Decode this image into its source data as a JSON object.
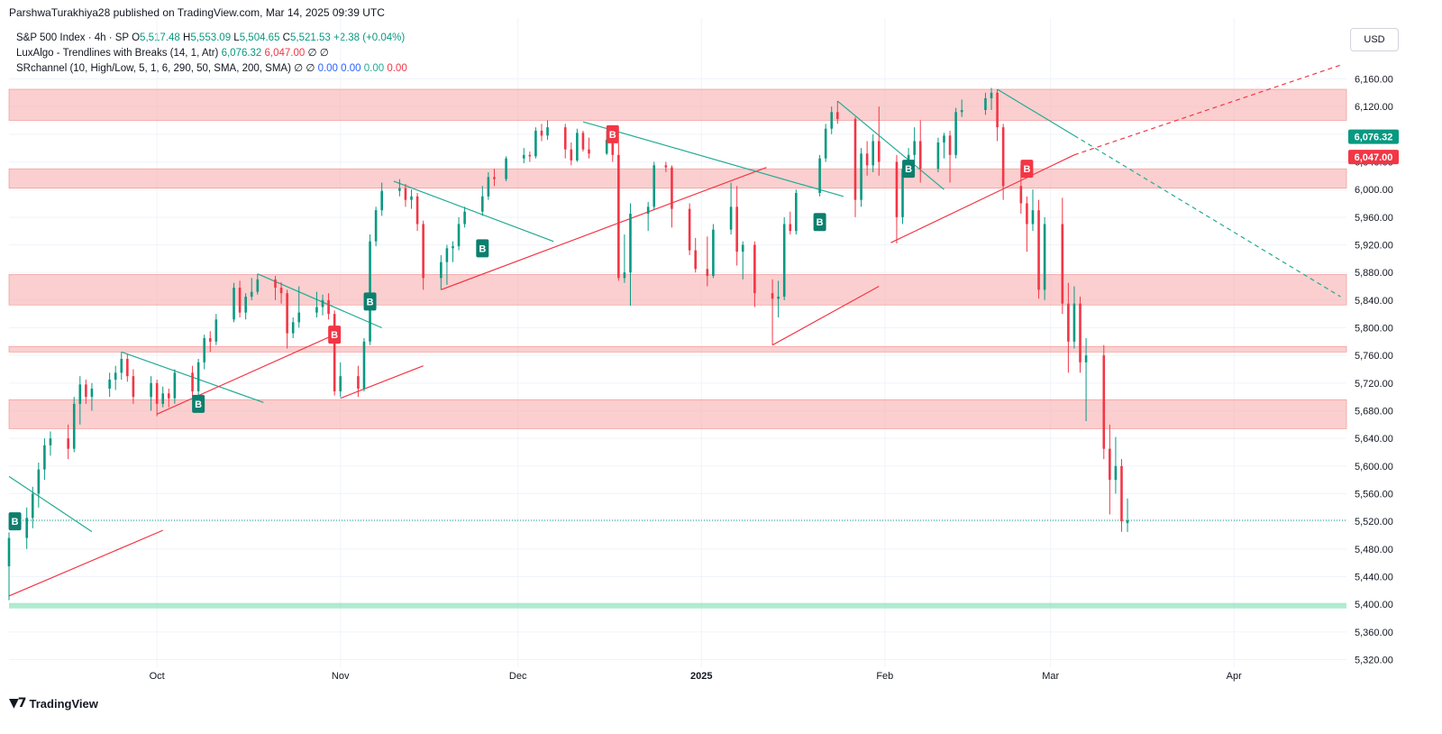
{
  "publisher_line": "ParshwaTurakhiya28 published on TradingView.com, Mar 14, 2025 09:39 UTC",
  "legend": {
    "symbol": "S&P 500 Index · 4h · SP",
    "o_label": "O",
    "o_val": "5,517.48",
    "h_label": "H",
    "h_val": "5,553.09",
    "l_label": "L",
    "l_val": "5,504.65",
    "c_label": "C",
    "c_val": "5,521.53",
    "change": "+2.38 (+0.04%)",
    "lux_name": "LuxAlgo - Trendlines with Breaks (14, 1, Atr)",
    "lux_v1": "6,076.32",
    "lux_v2": "6,047.00",
    "lux_v3": "∅  ∅",
    "sr_name": "SRchannel (10, High/Low, 5, 1, 6, 290, 50, SMA, 200, SMA)",
    "sr_v0": "∅  ∅",
    "sr_v1": "0.00",
    "sr_v2": "0.00",
    "sr_v3": "0.00",
    "sr_v4": "0.00"
  },
  "currency_button": "USD",
  "footer": {
    "brand": "TradingView",
    "logo_icon": "tradingview-logo-icon"
  },
  "colors": {
    "up": "#089981",
    "down": "#f23645",
    "zone": "#f7a8a8",
    "support_zone": "#7fe0b0",
    "trend_up": "#f23645",
    "trend_down": "#22ab94"
  },
  "chart_data": {
    "type": "candlestick",
    "title": "S&P 500 Index · 4h · SP",
    "y_axis": {
      "ticks": [
        5320,
        5360,
        5400,
        5440,
        5480,
        5520,
        5560,
        5600,
        5640,
        5680,
        5720,
        5760,
        5800,
        5840,
        5880,
        5920,
        5960,
        6000,
        6040,
        6080,
        6120,
        6160
      ],
      "tick_labels": [
        "5,320.00",
        "5,360.00",
        "5,400.00",
        "5,440.00",
        "5,480.00",
        "5,520.00",
        "5,560.00",
        "5,600.00",
        "5,640.00",
        "5,680.00",
        "5,720.00",
        "5,760.00",
        "5,800.00",
        "5,840.00",
        "5,880.00",
        "5,920.00",
        "5,960.00",
        "6,000.00",
        "6,040.00",
        "6,080.00",
        "6,120.00",
        "6,160.00"
      ],
      "range": [
        5300,
        6200
      ]
    },
    "x_axis": {
      "labels": [
        {
          "date": "2024-10-01",
          "label": "Oct",
          "bold": false
        },
        {
          "date": "2024-11-01",
          "label": "Nov",
          "bold": false
        },
        {
          "date": "2024-12-01",
          "label": "Dec",
          "bold": false
        },
        {
          "date": "2025-01-01",
          "label": "2025",
          "bold": true
        },
        {
          "date": "2025-02-01",
          "label": "Feb",
          "bold": false
        },
        {
          "date": "2025-03-01",
          "label": "Mar",
          "bold": false
        },
        {
          "date": "2025-04-01",
          "label": "Apr",
          "bold": false
        }
      ],
      "range": [
        "2024-09-06",
        "2025-04-20"
      ]
    },
    "price_labels": [
      {
        "value": 6076.32,
        "text": "6,076.32",
        "color": "#089981"
      },
      {
        "value": 6047.0,
        "text": "6,047.00",
        "color": "#f23645"
      }
    ],
    "last_price": 5521.53,
    "resistance_zones": [
      [
        6100,
        6145
      ],
      [
        6002,
        6030
      ],
      [
        5833,
        5877
      ],
      [
        5765,
        5773
      ],
      [
        5654,
        5696
      ]
    ],
    "support_zones": [
      [
        5394,
        5402
      ]
    ],
    "candles": [
      [
        "2024-09-06",
        5455,
        5504,
        5406,
        5496
      ],
      [
        "2024-09-09",
        5496,
        5540,
        5480,
        5525
      ],
      [
        "2024-09-10",
        5525,
        5570,
        5510,
        5560
      ],
      [
        "2024-09-11",
        5560,
        5605,
        5540,
        5595
      ],
      [
        "2024-09-12",
        5595,
        5640,
        5580,
        5630
      ],
      [
        "2024-09-13",
        5630,
        5650,
        5615,
        5640
      ],
      [
        "2024-09-16",
        5640,
        5660,
        5610,
        5625
      ],
      [
        "2024-09-17",
        5625,
        5700,
        5620,
        5690
      ],
      [
        "2024-09-18",
        5690,
        5730,
        5660,
        5718
      ],
      [
        "2024-09-19",
        5718,
        5725,
        5690,
        5700
      ],
      [
        "2024-09-20",
        5700,
        5720,
        5680,
        5712
      ],
      [
        "2024-09-23",
        5712,
        5735,
        5700,
        5725
      ],
      [
        "2024-09-24",
        5725,
        5745,
        5710,
        5735
      ],
      [
        "2024-09-25",
        5735,
        5765,
        5725,
        5755
      ],
      [
        "2024-09-26",
        5755,
        5762,
        5722,
        5730
      ],
      [
        "2024-09-27",
        5730,
        5740,
        5690,
        5700
      ],
      [
        "2024-09-30",
        5700,
        5730,
        5680,
        5720
      ],
      [
        "2024-10-01",
        5720,
        5725,
        5672,
        5690
      ],
      [
        "2024-10-02",
        5690,
        5715,
        5685,
        5705
      ],
      [
        "2024-10-03",
        5705,
        5712,
        5685,
        5698
      ],
      [
        "2024-10-04",
        5698,
        5740,
        5690,
        5735
      ],
      [
        "2024-10-07",
        5735,
        5745,
        5700,
        5708
      ],
      [
        "2024-10-08",
        5708,
        5755,
        5700,
        5750
      ],
      [
        "2024-10-09",
        5750,
        5790,
        5740,
        5785
      ],
      [
        "2024-10-10",
        5785,
        5795,
        5765,
        5780
      ],
      [
        "2024-10-11",
        5780,
        5820,
        5775,
        5812
      ],
      [
        "2024-10-14",
        5812,
        5865,
        5808,
        5858
      ],
      [
        "2024-10-15",
        5858,
        5868,
        5815,
        5822
      ],
      [
        "2024-10-16",
        5822,
        5850,
        5812,
        5845
      ],
      [
        "2024-10-17",
        5845,
        5872,
        5840,
        5852
      ],
      [
        "2024-10-18",
        5852,
        5878,
        5848,
        5870
      ],
      [
        "2024-10-21",
        5870,
        5875,
        5840,
        5858
      ],
      [
        "2024-10-22",
        5858,
        5866,
        5835,
        5850
      ],
      [
        "2024-10-23",
        5850,
        5855,
        5770,
        5792
      ],
      [
        "2024-10-24",
        5792,
        5815,
        5785,
        5808
      ],
      [
        "2024-10-25",
        5808,
        5860,
        5800,
        5822
      ],
      [
        "2024-10-28",
        5822,
        5852,
        5815,
        5830
      ],
      [
        "2024-10-29",
        5830,
        5848,
        5818,
        5840
      ],
      [
        "2024-10-30",
        5840,
        5850,
        5812,
        5820
      ],
      [
        "2024-10-31",
        5820,
        5825,
        5702,
        5708
      ],
      [
        "2024-11-01",
        5708,
        5750,
        5700,
        5730
      ],
      [
        "2024-11-04",
        5730,
        5745,
        5700,
        5712
      ],
      [
        "2024-11-05",
        5712,
        5785,
        5708,
        5780
      ],
      [
        "2024-11-06",
        5780,
        5935,
        5775,
        5925
      ],
      [
        "2024-11-07",
        5925,
        5975,
        5918,
        5970
      ],
      [
        "2024-11-08",
        5970,
        6010,
        5962,
        5998
      ],
      [
        "2024-11-11",
        5998,
        6015,
        5990,
        6002
      ],
      [
        "2024-11-12",
        6002,
        6008,
        5975,
        5985
      ],
      [
        "2024-11-13",
        5985,
        6000,
        5972,
        5990
      ],
      [
        "2024-11-14",
        5990,
        5995,
        5940,
        5950
      ],
      [
        "2024-11-15",
        5950,
        5955,
        5855,
        5872
      ],
      [
        "2024-11-18",
        5872,
        5905,
        5855,
        5895
      ],
      [
        "2024-11-19",
        5895,
        5920,
        5862,
        5915
      ],
      [
        "2024-11-20",
        5915,
        5925,
        5895,
        5918
      ],
      [
        "2024-11-21",
        5918,
        5960,
        5912,
        5950
      ],
      [
        "2024-11-22",
        5950,
        5975,
        5945,
        5968
      ],
      [
        "2024-11-25",
        5968,
        6005,
        5962,
        5990
      ],
      [
        "2024-11-26",
        5990,
        6025,
        5985,
        6018
      ],
      [
        "2024-11-27",
        6018,
        6030,
        6005,
        6015
      ],
      [
        "2024-11-29",
        6015,
        6048,
        6012,
        6045
      ],
      [
        "2024-12-02",
        6045,
        6060,
        6038,
        6050
      ],
      [
        "2024-12-03",
        6050,
        6055,
        6040,
        6048
      ],
      [
        "2024-12-04",
        6048,
        6090,
        6045,
        6085
      ],
      [
        "2024-12-05",
        6085,
        6095,
        6070,
        6078
      ],
      [
        "2024-12-06",
        6078,
        6100,
        6072,
        6090
      ],
      [
        "2024-12-09",
        6090,
        6095,
        6045,
        6058
      ],
      [
        "2024-12-10",
        6058,
        6068,
        6035,
        6042
      ],
      [
        "2024-12-11",
        6042,
        6088,
        6040,
        6082
      ],
      [
        "2024-12-12",
        6082,
        6085,
        6055,
        6058
      ],
      [
        "2024-12-13",
        6058,
        6075,
        6045,
        6052
      ],
      [
        "2024-12-16",
        6052,
        6085,
        6050,
        6072
      ],
      [
        "2024-12-17",
        6072,
        6078,
        6040,
        6050
      ],
      [
        "2024-12-18",
        6050,
        6068,
        5868,
        5872
      ],
      [
        "2024-12-19",
        5872,
        5935,
        5865,
        5880
      ],
      [
        "2024-12-20",
        5880,
        5980,
        5832,
        5965
      ],
      [
        "2024-12-23",
        5965,
        5982,
        5940,
        5975
      ],
      [
        "2024-12-24",
        5975,
        6040,
        5970,
        6035
      ],
      [
        "2024-12-26",
        6035,
        6040,
        6025,
        6032
      ],
      [
        "2024-12-27",
        6032,
        6035,
        5945,
        5972
      ],
      [
        "2024-12-30",
        5972,
        5980,
        5905,
        5912
      ],
      [
        "2024-12-31",
        5912,
        5930,
        5880,
        5885
      ],
      [
        "2025-01-02",
        5885,
        5932,
        5860,
        5875
      ],
      [
        "2025-01-03",
        5875,
        5950,
        5872,
        5942
      ],
      [
        "2025-01-06",
        5942,
        6010,
        5935,
        5975
      ],
      [
        "2025-01-07",
        5975,
        6005,
        5890,
        5910
      ],
      [
        "2025-01-08",
        5910,
        5925,
        5870,
        5920
      ],
      [
        "2025-01-10",
        5920,
        5925,
        5830,
        5850
      ],
      [
        "2025-01-13",
        5850,
        5870,
        5775,
        5842
      ],
      [
        "2025-01-14",
        5842,
        5868,
        5815,
        5845
      ],
      [
        "2025-01-15",
        5845,
        5960,
        5840,
        5950
      ],
      [
        "2025-01-16",
        5950,
        5968,
        5935,
        5940
      ],
      [
        "2025-01-17",
        5940,
        6000,
        5935,
        5995
      ],
      [
        "2025-01-21",
        5995,
        6050,
        5990,
        6045
      ],
      [
        "2025-01-22",
        6045,
        6095,
        6040,
        6088
      ],
      [
        "2025-01-23",
        6088,
        6120,
        6080,
        6112
      ],
      [
        "2025-01-24",
        6112,
        6128,
        6095,
        6102
      ],
      [
        "2025-01-27",
        6102,
        6105,
        5960,
        5985
      ],
      [
        "2025-01-28",
        5985,
        6060,
        5975,
        6052
      ],
      [
        "2025-01-29",
        6052,
        6070,
        6020,
        6035
      ],
      [
        "2025-01-30",
        6035,
        6080,
        6025,
        6070
      ],
      [
        "2025-01-31",
        6070,
        6120,
        6020,
        6040
      ],
      [
        "2025-02-03",
        6040,
        6050,
        5922,
        5960
      ],
      [
        "2025-02-04",
        5960,
        6035,
        5950,
        6030
      ],
      [
        "2025-02-05",
        6030,
        6060,
        6018,
        6050
      ],
      [
        "2025-02-06",
        6050,
        6090,
        6040,
        6070
      ],
      [
        "2025-02-07",
        6070,
        6100,
        6010,
        6030
      ],
      [
        "2025-02-10",
        6030,
        6075,
        6025,
        6068
      ],
      [
        "2025-02-11",
        6068,
        6082,
        6045,
        6078
      ],
      [
        "2025-02-12",
        6078,
        6085,
        6010,
        6050
      ],
      [
        "2025-02-13",
        6050,
        6118,
        6045,
        6112
      ],
      [
        "2025-02-14",
        6112,
        6130,
        6105,
        6115
      ],
      [
        "2025-02-18",
        6115,
        6140,
        6108,
        6132
      ],
      [
        "2025-02-19",
        6132,
        6147,
        6115,
        6140
      ],
      [
        "2025-02-20",
        6140,
        6145,
        6070,
        6090
      ],
      [
        "2025-02-21",
        6090,
        6095,
        5985,
        6005
      ],
      [
        "2025-02-24",
        6005,
        6035,
        5965,
        5980
      ],
      [
        "2025-02-25",
        5980,
        5990,
        5910,
        5950
      ],
      [
        "2025-02-26",
        5950,
        6000,
        5940,
        5970
      ],
      [
        "2025-02-27",
        5970,
        5985,
        5842,
        5855
      ],
      [
        "2025-02-28",
        5855,
        5960,
        5840,
        5950
      ],
      [
        "2025-03-03",
        5950,
        5988,
        5820,
        5835
      ],
      [
        "2025-03-04",
        5835,
        5865,
        5735,
        5780
      ],
      [
        "2025-03-05",
        5780,
        5860,
        5770,
        5835
      ],
      [
        "2025-03-06",
        5835,
        5845,
        5735,
        5750
      ],
      [
        "2025-03-07",
        5750,
        5785,
        5665,
        5760
      ],
      [
        "2025-03-10",
        5760,
        5775,
        5610,
        5625
      ],
      [
        "2025-03-11",
        5625,
        5660,
        5530,
        5580
      ],
      [
        "2025-03-12",
        5580,
        5642,
        5560,
        5600
      ],
      [
        "2025-03-13",
        5600,
        5610,
        5505,
        5520
      ],
      [
        "2025-03-14",
        5517.48,
        5553.09,
        5504.65,
        5521.53
      ]
    ],
    "trendlines": [
      {
        "color": "down",
        "dashed": false,
        "from": [
          "2024-09-06",
          5585
        ],
        "to": [
          "2024-09-20",
          5505
        ]
      },
      {
        "color": "up",
        "dashed": false,
        "from": [
          "2024-09-06",
          5412
        ],
        "to": [
          "2024-10-02",
          5507
        ]
      },
      {
        "color": "down",
        "dashed": false,
        "from": [
          "2024-09-25",
          5765
        ],
        "to": [
          "2024-10-19",
          5692
        ]
      },
      {
        "color": "up",
        "dashed": false,
        "from": [
          "2024-10-01",
          5675
        ],
        "to": [
          "2024-10-31",
          5790
        ]
      },
      {
        "color": "down",
        "dashed": false,
        "from": [
          "2024-10-18",
          5878
        ],
        "to": [
          "2024-11-08",
          5800
        ]
      },
      {
        "color": "up",
        "dashed": false,
        "from": [
          "2024-11-01",
          5698
        ],
        "to": [
          "2024-11-15",
          5745
        ]
      },
      {
        "color": "down",
        "dashed": false,
        "from": [
          "2024-11-10",
          6012
        ],
        "to": [
          "2024-12-07",
          5925
        ]
      },
      {
        "color": "up",
        "dashed": false,
        "from": [
          "2024-11-18",
          5855
        ],
        "to": [
          "2025-01-12",
          6032
        ]
      },
      {
        "color": "down",
        "dashed": false,
        "from": [
          "2024-12-12",
          6098
        ],
        "to": [
          "2025-01-25",
          5990
        ]
      },
      {
        "color": "up",
        "dashed": false,
        "from": [
          "2025-01-13",
          5775
        ],
        "to": [
          "2025-01-31",
          5860
        ]
      },
      {
        "color": "down",
        "dashed": false,
        "from": [
          "2025-01-24",
          6128
        ],
        "to": [
          "2025-02-11",
          6000
        ]
      },
      {
        "color": "up",
        "dashed": false,
        "from": [
          "2025-02-02",
          5923
        ],
        "to": [
          "2025-03-05",
          6050
        ]
      },
      {
        "color": "up",
        "dashed": true,
        "from": [
          "2025-03-05",
          6050
        ],
        "to": [
          "2025-04-19",
          6180
        ]
      },
      {
        "color": "down",
        "dashed": false,
        "from": [
          "2025-02-20",
          6145
        ],
        "to": [
          "2025-03-05",
          6078
        ]
      },
      {
        "color": "down",
        "dashed": true,
        "from": [
          "2025-03-05",
          6078
        ],
        "to": [
          "2025-04-19",
          5845
        ]
      }
    ],
    "markers": [
      {
        "date": "2024-09-07",
        "price": 5520,
        "label": "B",
        "kind": "buy"
      },
      {
        "date": "2024-10-08",
        "price": 5690,
        "label": "B",
        "kind": "buy"
      },
      {
        "date": "2024-10-31",
        "price": 5790,
        "label": "B",
        "kind": "sell"
      },
      {
        "date": "2024-11-06",
        "price": 5838,
        "label": "B",
        "kind": "buy"
      },
      {
        "date": "2024-11-25",
        "price": 5915,
        "label": "B",
        "kind": "buy"
      },
      {
        "date": "2024-12-17",
        "price": 6080,
        "label": "B",
        "kind": "sell"
      },
      {
        "date": "2025-01-21",
        "price": 5953,
        "label": "B",
        "kind": "buy"
      },
      {
        "date": "2025-02-05",
        "price": 6030,
        "label": "B",
        "kind": "buy"
      },
      {
        "date": "2025-02-25",
        "price": 6030,
        "label": "B",
        "kind": "sell"
      }
    ]
  }
}
